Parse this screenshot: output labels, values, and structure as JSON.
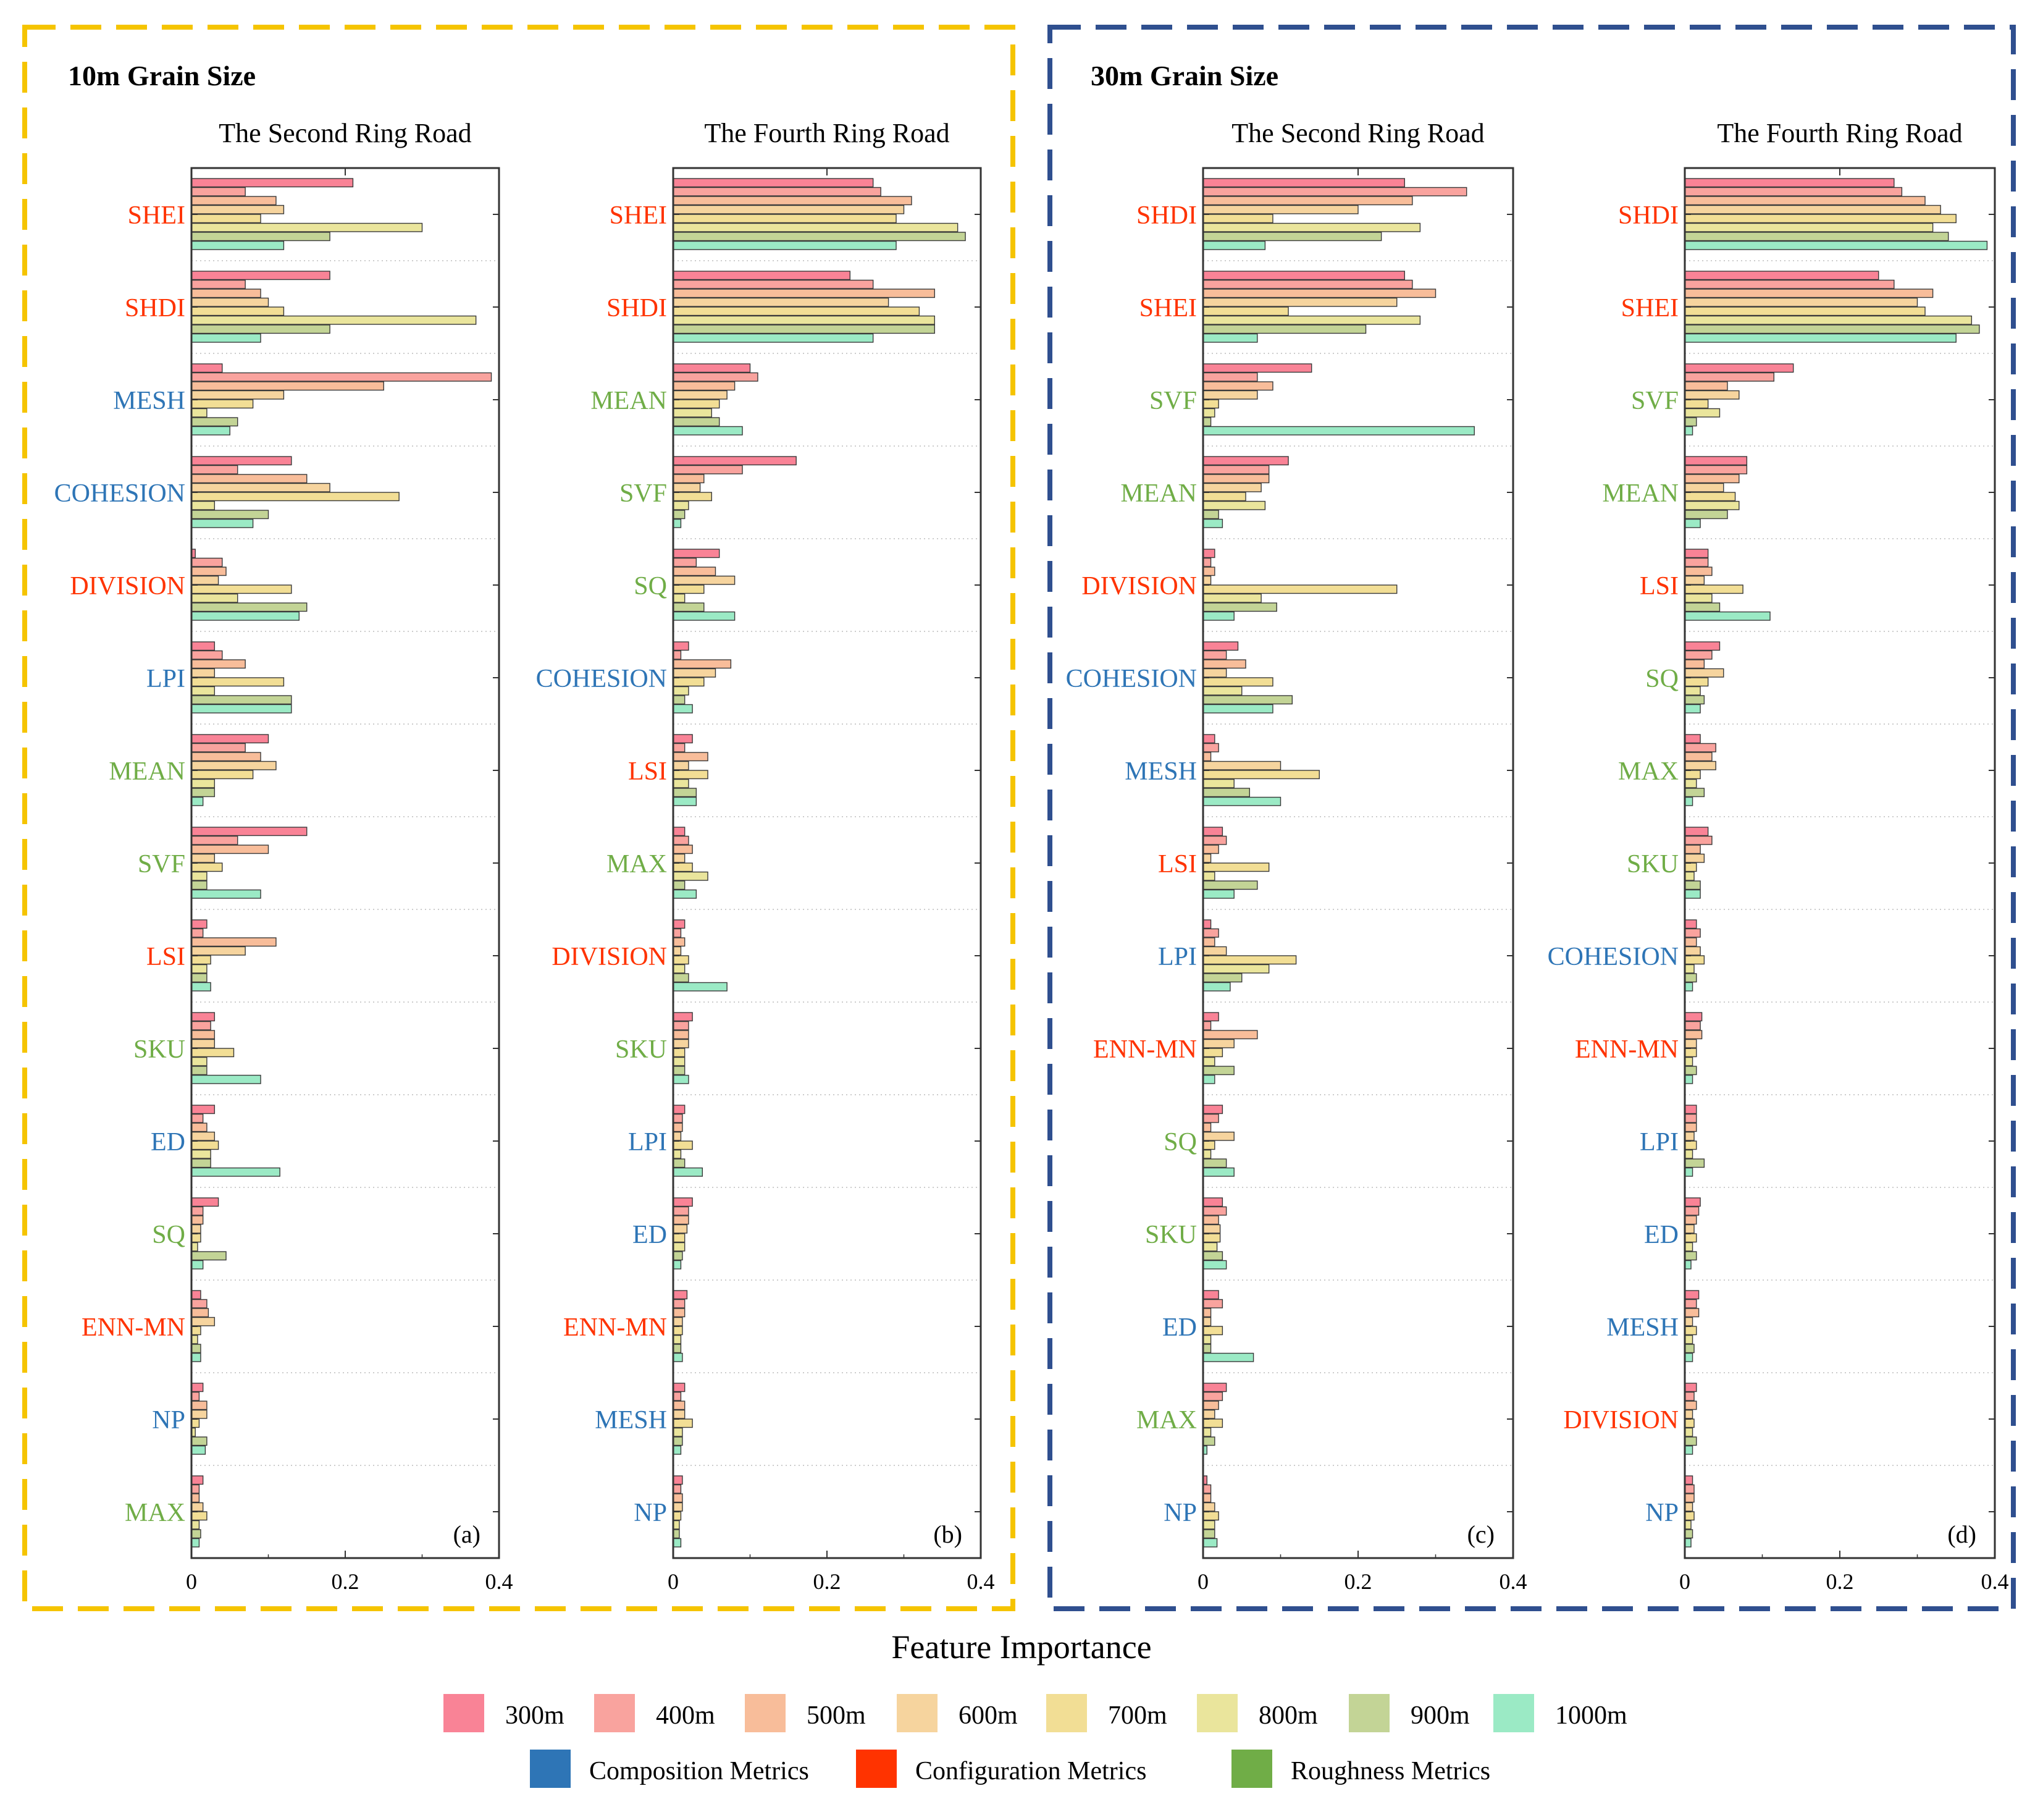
{
  "figure": {
    "x_axis_title": "Feature Importance",
    "groups": [
      {
        "title": "10m Grain Size",
        "border_color": "#F5C400"
      },
      {
        "title": "30m Grain Size",
        "border_color": "#2F4F8F"
      }
    ],
    "legend": {
      "scales": [
        {
          "label": "300m",
          "color": "#F98396"
        },
        {
          "label": "400m",
          "color": "#F9A39E"
        },
        {
          "label": "500m",
          "color": "#F8BD9A"
        },
        {
          "label": "600m",
          "color": "#F6D49E"
        },
        {
          "label": "700m",
          "color": "#F2DE95"
        },
        {
          "label": "800m",
          "color": "#EAE59C"
        },
        {
          "label": "900m",
          "color": "#C3D496"
        },
        {
          "label": "1000m",
          "color": "#9BEAC5"
        }
      ],
      "metric_types": [
        {
          "label": "Composition Metrics",
          "color": "#2E75B6"
        },
        {
          "label": "Configuration Metrics",
          "color": "#FF3300"
        },
        {
          "label": "Roughness Metrics",
          "color": "#70AD47"
        }
      ]
    },
    "metric_colors": {
      "composition": "#2E75B6",
      "configuration": "#FF3300",
      "roughness": "#70AD47"
    }
  },
  "chart_data": [
    {
      "type": "bar",
      "orientation": "horizontal",
      "title": "The Second Ring Road",
      "grain_size": "10m",
      "panel_label": "(a)",
      "xlabel": "",
      "xlim": [
        0,
        0.4
      ],
      "xticks": [
        "0",
        "0.2",
        "0.4"
      ],
      "series_names": [
        "300m",
        "400m",
        "500m",
        "600m",
        "700m",
        "800m",
        "900m",
        "1000m"
      ],
      "features": [
        {
          "name": "SHEI",
          "type": "configuration",
          "values": [
            0.21,
            0.07,
            0.11,
            0.12,
            0.09,
            0.3,
            0.18,
            0.12
          ]
        },
        {
          "name": "SHDI",
          "type": "configuration",
          "values": [
            0.18,
            0.07,
            0.09,
            0.1,
            0.12,
            0.37,
            0.18,
            0.09
          ]
        },
        {
          "name": "MESH",
          "type": "composition",
          "values": [
            0.04,
            0.39,
            0.25,
            0.12,
            0.08,
            0.02,
            0.06,
            0.05
          ]
        },
        {
          "name": "COHESION",
          "type": "composition",
          "values": [
            0.13,
            0.06,
            0.15,
            0.18,
            0.27,
            0.03,
            0.1,
            0.08
          ]
        },
        {
          "name": "DIVISION",
          "type": "configuration",
          "values": [
            0.005,
            0.04,
            0.045,
            0.035,
            0.13,
            0.06,
            0.15,
            0.14
          ]
        },
        {
          "name": "LPI",
          "type": "composition",
          "values": [
            0.03,
            0.04,
            0.07,
            0.03,
            0.12,
            0.03,
            0.13,
            0.13
          ]
        },
        {
          "name": "MEAN",
          "type": "roughness",
          "values": [
            0.1,
            0.07,
            0.09,
            0.11,
            0.08,
            0.03,
            0.03,
            0.015
          ]
        },
        {
          "name": "SVF",
          "type": "roughness",
          "values": [
            0.15,
            0.06,
            0.1,
            0.03,
            0.04,
            0.02,
            0.02,
            0.09
          ]
        },
        {
          "name": "LSI",
          "type": "configuration",
          "values": [
            0.02,
            0.015,
            0.11,
            0.07,
            0.025,
            0.02,
            0.02,
            0.025
          ]
        },
        {
          "name": "SKU",
          "type": "roughness",
          "values": [
            0.03,
            0.025,
            0.03,
            0.03,
            0.055,
            0.02,
            0.02,
            0.09
          ]
        },
        {
          "name": "ED",
          "type": "composition",
          "values": [
            0.03,
            0.015,
            0.02,
            0.03,
            0.035,
            0.025,
            0.025,
            0.115
          ]
        },
        {
          "name": "SQ",
          "type": "roughness",
          "values": [
            0.035,
            0.015,
            0.015,
            0.012,
            0.012,
            0.008,
            0.045,
            0.015
          ]
        },
        {
          "name": "ENN-MN",
          "type": "configuration",
          "values": [
            0.012,
            0.02,
            0.022,
            0.03,
            0.012,
            0.008,
            0.012,
            0.012
          ]
        },
        {
          "name": "NP",
          "type": "composition",
          "values": [
            0.015,
            0.01,
            0.02,
            0.02,
            0.01,
            0.005,
            0.02,
            0.018
          ]
        },
        {
          "name": "MAX",
          "type": "roughness",
          "values": [
            0.015,
            0.01,
            0.01,
            0.015,
            0.02,
            0.01,
            0.012,
            0.01
          ]
        }
      ]
    },
    {
      "type": "bar",
      "orientation": "horizontal",
      "title": "The Fourth Ring Road",
      "grain_size": "10m",
      "panel_label": "(b)",
      "xlabel": "",
      "xlim": [
        0,
        0.4
      ],
      "xticks": [
        "0",
        "0.2",
        "0.4"
      ],
      "series_names": [
        "300m",
        "400m",
        "500m",
        "600m",
        "700m",
        "800m",
        "900m",
        "1000m"
      ],
      "features": [
        {
          "name": "SHEI",
          "type": "configuration",
          "values": [
            0.26,
            0.27,
            0.31,
            0.3,
            0.29,
            0.37,
            0.38,
            0.29
          ]
        },
        {
          "name": "SHDI",
          "type": "configuration",
          "values": [
            0.23,
            0.26,
            0.34,
            0.28,
            0.32,
            0.34,
            0.34,
            0.26
          ]
        },
        {
          "name": "MEAN",
          "type": "roughness",
          "values": [
            0.1,
            0.11,
            0.08,
            0.07,
            0.06,
            0.05,
            0.06,
            0.09
          ]
        },
        {
          "name": "SVF",
          "type": "roughness",
          "values": [
            0.16,
            0.09,
            0.04,
            0.035,
            0.05,
            0.02,
            0.015,
            0.01
          ]
        },
        {
          "name": "SQ",
          "type": "roughness",
          "values": [
            0.06,
            0.03,
            0.055,
            0.08,
            0.04,
            0.015,
            0.04,
            0.08
          ]
        },
        {
          "name": "COHESION",
          "type": "composition",
          "values": [
            0.02,
            0.01,
            0.075,
            0.055,
            0.04,
            0.02,
            0.015,
            0.025
          ]
        },
        {
          "name": "LSI",
          "type": "configuration",
          "values": [
            0.025,
            0.015,
            0.045,
            0.02,
            0.045,
            0.02,
            0.03,
            0.03
          ]
        },
        {
          "name": "MAX",
          "type": "roughness",
          "values": [
            0.015,
            0.02,
            0.025,
            0.015,
            0.025,
            0.045,
            0.015,
            0.03
          ]
        },
        {
          "name": "DIVISION",
          "type": "configuration",
          "values": [
            0.015,
            0.01,
            0.015,
            0.01,
            0.02,
            0.015,
            0.02,
            0.07
          ]
        },
        {
          "name": "SKU",
          "type": "roughness",
          "values": [
            0.025,
            0.02,
            0.02,
            0.02,
            0.015,
            0.015,
            0.015,
            0.02
          ]
        },
        {
          "name": "LPI",
          "type": "composition",
          "values": [
            0.015,
            0.012,
            0.012,
            0.01,
            0.025,
            0.01,
            0.015,
            0.038
          ]
        },
        {
          "name": "ED",
          "type": "composition",
          "values": [
            0.025,
            0.02,
            0.02,
            0.018,
            0.015,
            0.015,
            0.012,
            0.01
          ]
        },
        {
          "name": "ENN-MN",
          "type": "configuration",
          "values": [
            0.018,
            0.015,
            0.015,
            0.012,
            0.012,
            0.01,
            0.01,
            0.012
          ]
        },
        {
          "name": "MESH",
          "type": "composition",
          "values": [
            0.015,
            0.01,
            0.015,
            0.015,
            0.025,
            0.012,
            0.012,
            0.01
          ]
        },
        {
          "name": "NP",
          "type": "composition",
          "values": [
            0.012,
            0.01,
            0.012,
            0.012,
            0.01,
            0.008,
            0.008,
            0.01
          ]
        }
      ]
    },
    {
      "type": "bar",
      "orientation": "horizontal",
      "title": "The Second Ring Road",
      "grain_size": "30m",
      "panel_label": "(c)",
      "xlabel": "",
      "xlim": [
        0,
        0.4
      ],
      "xticks": [
        "0",
        "0.2",
        "0.4"
      ],
      "series_names": [
        "300m",
        "400m",
        "500m",
        "600m",
        "700m",
        "800m",
        "900m",
        "1000m"
      ],
      "features": [
        {
          "name": "SHDI",
          "type": "configuration",
          "values": [
            0.26,
            0.34,
            0.27,
            0.2,
            0.09,
            0.28,
            0.23,
            0.08
          ]
        },
        {
          "name": "SHEI",
          "type": "configuration",
          "values": [
            0.26,
            0.27,
            0.3,
            0.25,
            0.11,
            0.28,
            0.21,
            0.07
          ]
        },
        {
          "name": "SVF",
          "type": "roughness",
          "values": [
            0.14,
            0.07,
            0.09,
            0.07,
            0.02,
            0.015,
            0.01,
            0.35
          ]
        },
        {
          "name": "MEAN",
          "type": "roughness",
          "values": [
            0.11,
            0.085,
            0.085,
            0.075,
            0.055,
            0.08,
            0.02,
            0.025
          ]
        },
        {
          "name": "DIVISION",
          "type": "configuration",
          "values": [
            0.015,
            0.01,
            0.015,
            0.01,
            0.25,
            0.075,
            0.095,
            0.04
          ]
        },
        {
          "name": "COHESION",
          "type": "composition",
          "values": [
            0.045,
            0.03,
            0.055,
            0.03,
            0.09,
            0.05,
            0.115,
            0.09
          ]
        },
        {
          "name": "MESH",
          "type": "composition",
          "values": [
            0.015,
            0.02,
            0.01,
            0.1,
            0.15,
            0.04,
            0.06,
            0.1
          ]
        },
        {
          "name": "LSI",
          "type": "configuration",
          "values": [
            0.025,
            0.03,
            0.02,
            0.01,
            0.085,
            0.015,
            0.07,
            0.04
          ]
        },
        {
          "name": "LPI",
          "type": "composition",
          "values": [
            0.01,
            0.02,
            0.015,
            0.03,
            0.12,
            0.085,
            0.05,
            0.035
          ]
        },
        {
          "name": "ENN-MN",
          "type": "configuration",
          "values": [
            0.02,
            0.01,
            0.07,
            0.04,
            0.025,
            0.015,
            0.04,
            0.015
          ]
        },
        {
          "name": "SQ",
          "type": "roughness",
          "values": [
            0.025,
            0.02,
            0.01,
            0.04,
            0.015,
            0.01,
            0.03,
            0.04
          ]
        },
        {
          "name": "SKU",
          "type": "roughness",
          "values": [
            0.025,
            0.03,
            0.02,
            0.022,
            0.022,
            0.018,
            0.025,
            0.03
          ]
        },
        {
          "name": "ED",
          "type": "composition",
          "values": [
            0.02,
            0.025,
            0.01,
            0.01,
            0.025,
            0.01,
            0.01,
            0.065
          ]
        },
        {
          "name": "MAX",
          "type": "roughness",
          "values": [
            0.03,
            0.025,
            0.02,
            0.015,
            0.025,
            0.01,
            0.015,
            0.005
          ]
        },
        {
          "name": "NP",
          "type": "composition",
          "values": [
            0.005,
            0.01,
            0.01,
            0.015,
            0.02,
            0.015,
            0.015,
            0.018
          ]
        }
      ]
    },
    {
      "type": "bar",
      "orientation": "horizontal",
      "title": "The Fourth Ring Road",
      "grain_size": "30m",
      "panel_label": "(d)",
      "xlabel": "",
      "xlim": [
        0,
        0.4
      ],
      "xticks": [
        "0",
        "0.2",
        "0.4"
      ],
      "series_names": [
        "300m",
        "400m",
        "500m",
        "600m",
        "700m",
        "800m",
        "900m",
        "1000m"
      ],
      "features": [
        {
          "name": "SHDI",
          "type": "configuration",
          "values": [
            0.27,
            0.28,
            0.31,
            0.33,
            0.35,
            0.32,
            0.34,
            0.39
          ]
        },
        {
          "name": "SHEI",
          "type": "configuration",
          "values": [
            0.25,
            0.27,
            0.32,
            0.3,
            0.31,
            0.37,
            0.38,
            0.35
          ]
        },
        {
          "name": "SVF",
          "type": "roughness",
          "values": [
            0.14,
            0.115,
            0.055,
            0.07,
            0.03,
            0.045,
            0.015,
            0.01
          ]
        },
        {
          "name": "MEAN",
          "type": "roughness",
          "values": [
            0.08,
            0.08,
            0.07,
            0.05,
            0.065,
            0.07,
            0.055,
            0.02
          ]
        },
        {
          "name": "LSI",
          "type": "configuration",
          "values": [
            0.03,
            0.03,
            0.035,
            0.025,
            0.075,
            0.035,
            0.045,
            0.11
          ]
        },
        {
          "name": "SQ",
          "type": "roughness",
          "values": [
            0.045,
            0.035,
            0.025,
            0.05,
            0.03,
            0.02,
            0.025,
            0.02
          ]
        },
        {
          "name": "MAX",
          "type": "roughness",
          "values": [
            0.02,
            0.04,
            0.035,
            0.04,
            0.02,
            0.015,
            0.025,
            0.01
          ]
        },
        {
          "name": "SKU",
          "type": "roughness",
          "values": [
            0.03,
            0.035,
            0.02,
            0.025,
            0.015,
            0.012,
            0.02,
            0.02
          ]
        },
        {
          "name": "COHESION",
          "type": "composition",
          "values": [
            0.015,
            0.02,
            0.015,
            0.02,
            0.025,
            0.012,
            0.015,
            0.01
          ]
        },
        {
          "name": "ENN-MN",
          "type": "configuration",
          "values": [
            0.022,
            0.02,
            0.022,
            0.015,
            0.015,
            0.01,
            0.015,
            0.01
          ]
        },
        {
          "name": "LPI",
          "type": "composition",
          "values": [
            0.015,
            0.015,
            0.015,
            0.012,
            0.015,
            0.01,
            0.025,
            0.01
          ]
        },
        {
          "name": "ED",
          "type": "composition",
          "values": [
            0.02,
            0.018,
            0.015,
            0.012,
            0.015,
            0.01,
            0.015,
            0.008
          ]
        },
        {
          "name": "MESH",
          "type": "composition",
          "values": [
            0.018,
            0.015,
            0.018,
            0.01,
            0.015,
            0.01,
            0.012,
            0.01
          ]
        },
        {
          "name": "DIVISION",
          "type": "configuration",
          "values": [
            0.015,
            0.012,
            0.015,
            0.01,
            0.012,
            0.01,
            0.015,
            0.01
          ]
        },
        {
          "name": "NP",
          "type": "composition",
          "values": [
            0.01,
            0.012,
            0.012,
            0.01,
            0.012,
            0.008,
            0.01,
            0.008
          ]
        }
      ]
    }
  ]
}
